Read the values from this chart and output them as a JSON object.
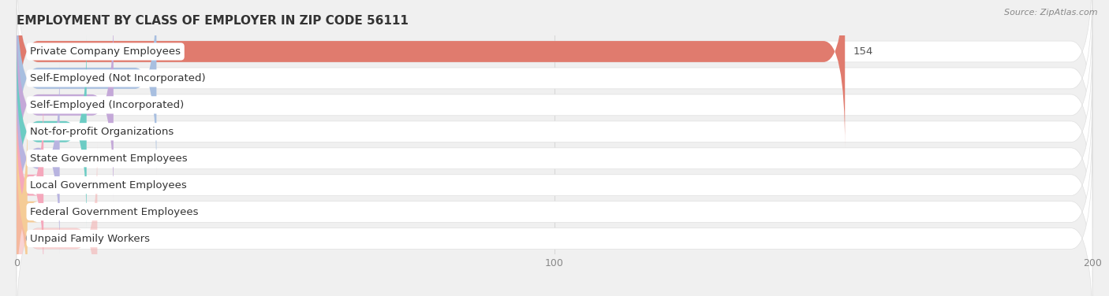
{
  "title": "EMPLOYMENT BY CLASS OF EMPLOYER IN ZIP CODE 56111",
  "source": "Source: ZipAtlas.com",
  "categories": [
    "Private Company Employees",
    "Self-Employed (Not Incorporated)",
    "Self-Employed (Incorporated)",
    "Not-for-profit Organizations",
    "State Government Employees",
    "Local Government Employees",
    "Federal Government Employees",
    "Unpaid Family Workers"
  ],
  "values": [
    154,
    26,
    18,
    13,
    8,
    5,
    2,
    0
  ],
  "bar_colors": [
    "#E07B6E",
    "#A8BFE0",
    "#C4A8D8",
    "#6CCCC4",
    "#B8B4E0",
    "#F5A8BC",
    "#F5CC96",
    "#F5A8A8"
  ],
  "xlim": [
    0,
    200
  ],
  "xticks": [
    0,
    100,
    200
  ],
  "background_color": "#f0f0f0",
  "row_bg_color": "#ffffff",
  "row_border_color": "#e0e0e0",
  "title_fontsize": 11,
  "label_fontsize": 9.5,
  "value_fontsize": 9.5,
  "bar_height": 0.55,
  "grid_color": "#d8d8d8",
  "tick_color": "#888888",
  "value_color": "#555555",
  "source_color": "#888888",
  "title_color": "#333333"
}
